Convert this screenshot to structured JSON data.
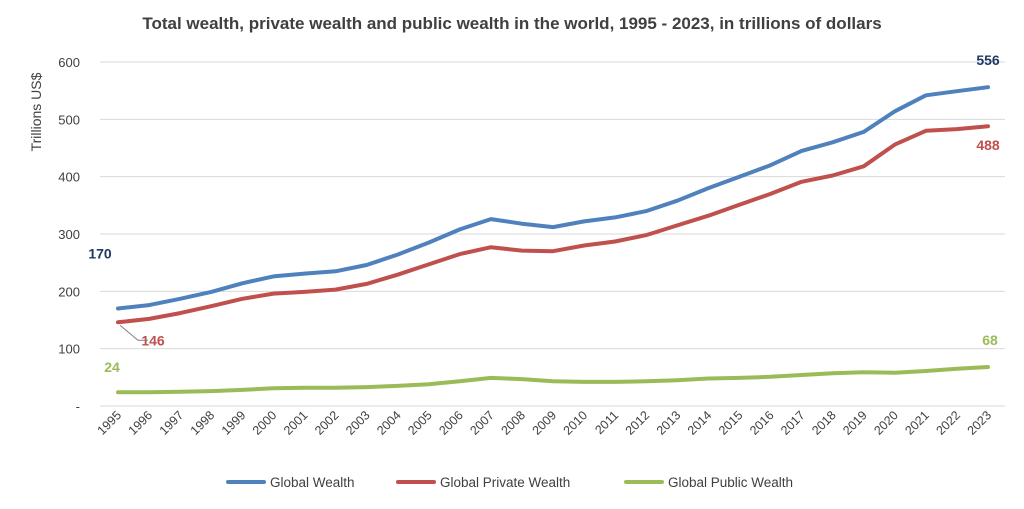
{
  "chart_data": {
    "type": "line",
    "title": "Total wealth, private wealth and public wealth in the world, 1995 - 2023, in trillions of dollars",
    "ylabel": "Trillions US$",
    "xlabel": "",
    "ylim": [
      0,
      600
    ],
    "yticks": [
      {
        "value": 0,
        "label": "-"
      },
      {
        "value": 100,
        "label": "100"
      },
      {
        "value": 200,
        "label": "200"
      },
      {
        "value": 300,
        "label": "300"
      },
      {
        "value": 400,
        "label": "400"
      },
      {
        "value": 500,
        "label": "500"
      },
      {
        "value": 600,
        "label": "600"
      }
    ],
    "grid": true,
    "legend_position": "bottom",
    "x": [
      "1995",
      "1996",
      "1997",
      "1998",
      "1999",
      "2000",
      "2001",
      "2002",
      "2003",
      "2004",
      "2005",
      "2006",
      "2007",
      "2008",
      "2009",
      "2010",
      "2011",
      "2012",
      "2013",
      "2014",
      "2015",
      "2016",
      "2017",
      "2018",
      "2019",
      "2020",
      "2021",
      "2022",
      "2023"
    ],
    "series": [
      {
        "name": "Global Wealth",
        "color": "#4f81bd",
        "label_color": "#1f3864",
        "values": [
          170,
          176,
          187,
          199,
          214,
          226,
          231,
          235,
          246,
          264,
          285,
          308,
          326,
          318,
          312,
          322,
          329,
          340,
          358,
          380,
          400,
          420,
          445,
          460,
          478,
          514,
          542,
          549,
          556
        ],
        "data_labels": [
          {
            "index": 0,
            "text": "170"
          },
          {
            "index": 28,
            "text": "556"
          }
        ]
      },
      {
        "name": "Global Private Wealth",
        "color": "#c0504d",
        "label_color": "#c0504d",
        "values": [
          146,
          152,
          162,
          174,
          187,
          196,
          199,
          203,
          213,
          229,
          247,
          265,
          277,
          271,
          270,
          280,
          287,
          298,
          315,
          332,
          351,
          370,
          391,
          402,
          418,
          456,
          480,
          483,
          488
        ],
        "data_labels": [
          {
            "index": 0,
            "text": "146"
          },
          {
            "index": 28,
            "text": "488"
          }
        ]
      },
      {
        "name": "Global Public Wealth",
        "color": "#9bbb59",
        "label_color": "#9bbb59",
        "values": [
          24,
          24,
          25,
          26,
          28,
          31,
          32,
          32,
          33,
          35,
          38,
          43,
          49,
          47,
          43,
          42,
          42,
          43,
          45,
          48,
          49,
          51,
          54,
          57,
          59,
          58,
          61,
          65,
          68
        ],
        "data_labels": [
          {
            "index": 0,
            "text": "24"
          },
          {
            "index": 28,
            "text": "68"
          }
        ]
      }
    ]
  }
}
